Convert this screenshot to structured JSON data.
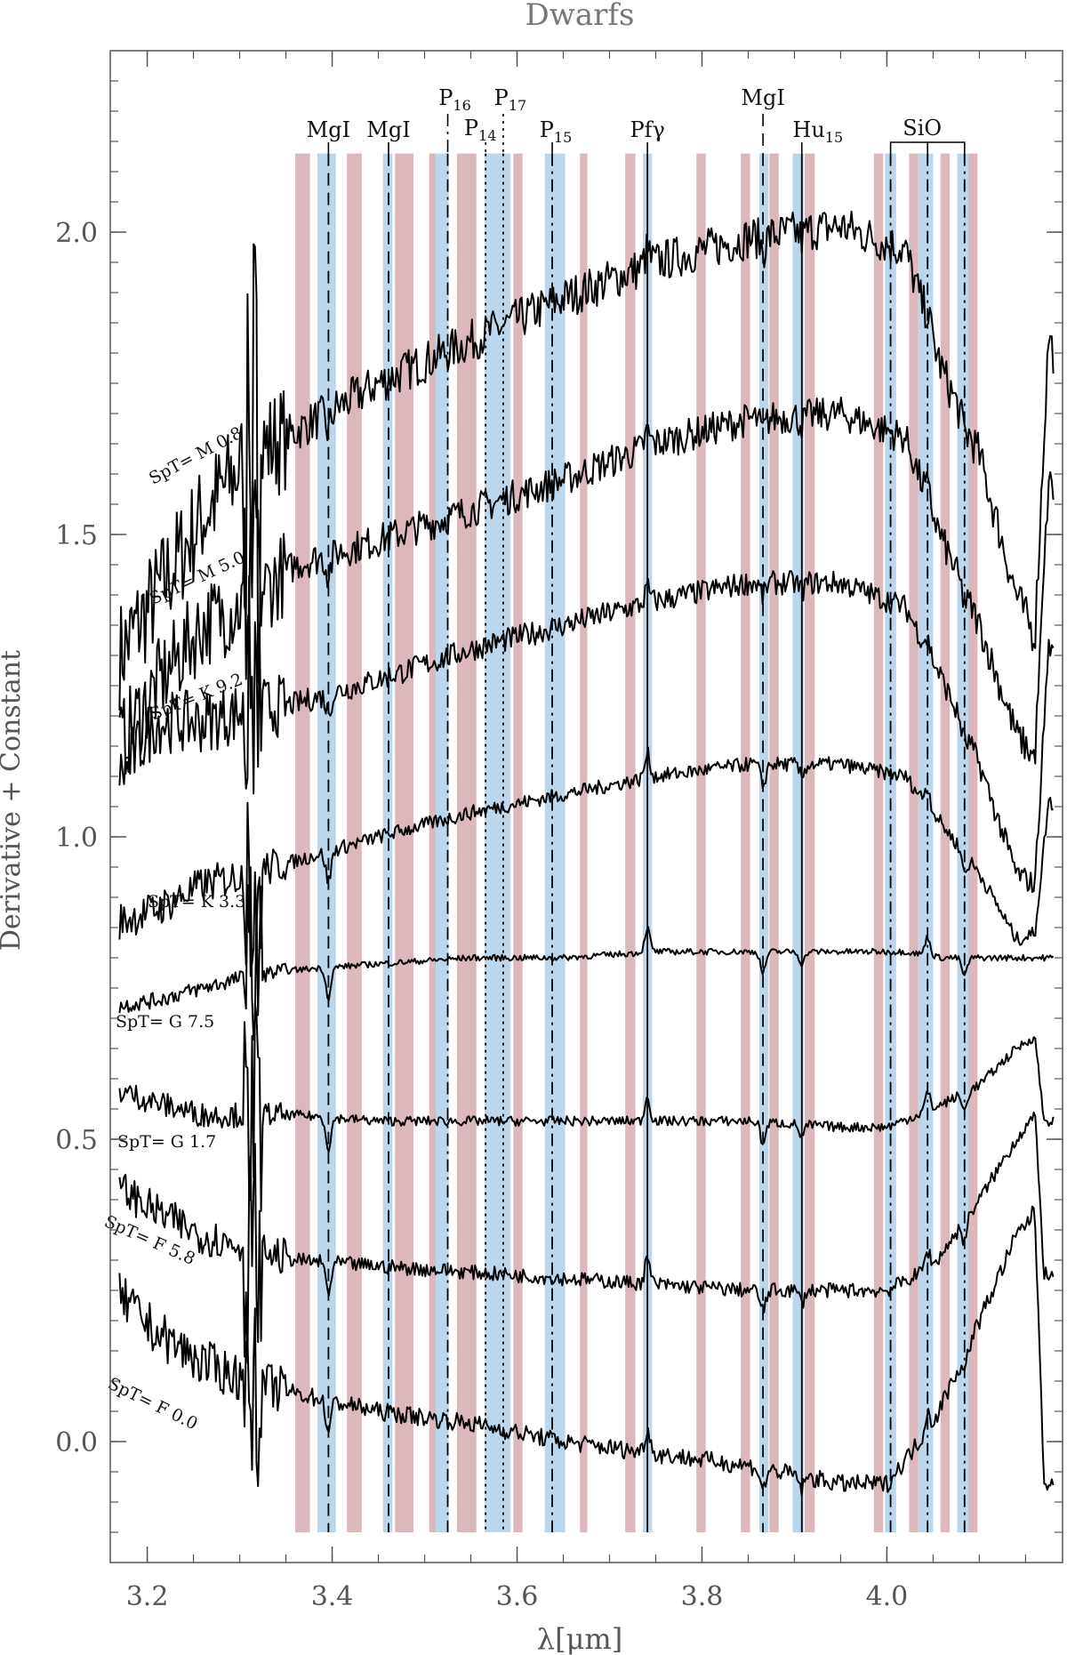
{
  "chart_data": {
    "type": "line",
    "title": "Dwarfs",
    "xlabel": "λ[μm]",
    "ylabel": "Derivative + Constant",
    "xlim": [
      3.16,
      4.19
    ],
    "ylim": [
      -0.2,
      2.3
    ],
    "x_ticks": [
      3.2,
      3.4,
      3.6,
      3.8,
      4.0
    ],
    "x_tick_labels": [
      "3.2",
      "3.4",
      "3.6",
      "3.8",
      "4.0"
    ],
    "y_ticks": [
      0.0,
      0.5,
      1.0,
      1.5,
      2.0
    ],
    "y_tick_labels": [
      "0.0",
      "0.5",
      "1.0",
      "1.5",
      "2.0"
    ],
    "grid": false,
    "red_bands": [
      [
        3.36,
        3.376
      ],
      [
        3.416,
        3.432
      ],
      [
        3.468,
        3.488
      ],
      [
        3.505,
        3.523
      ],
      [
        3.535,
        3.556
      ],
      [
        3.596,
        3.606
      ],
      [
        3.668,
        3.676
      ],
      [
        3.717,
        3.728
      ],
      [
        3.794,
        3.804
      ],
      [
        3.842,
        3.852
      ],
      [
        3.873,
        3.883
      ],
      [
        3.911,
        3.922
      ],
      [
        3.986,
        3.996
      ],
      [
        4.024,
        4.034
      ],
      [
        4.058,
        4.068
      ],
      [
        4.088,
        4.098
      ]
    ],
    "blue_bands": [
      [
        3.384,
        3.404
      ],
      [
        3.455,
        3.465
      ],
      [
        3.512,
        3.526
      ],
      [
        3.565,
        3.593
      ],
      [
        3.63,
        3.652
      ],
      [
        3.736,
        3.746
      ],
      [
        3.862,
        3.872
      ],
      [
        3.898,
        3.91
      ],
      [
        3.998,
        4.01
      ],
      [
        4.034,
        4.05
      ],
      [
        4.076,
        4.088
      ]
    ],
    "line_markers": [
      {
        "label": "MgI",
        "x": 3.396,
        "style": "dashed"
      },
      {
        "label": "MgI",
        "x": 3.461,
        "style": "dashed"
      },
      {
        "label": "P16",
        "x": 3.525,
        "style": "dashdot",
        "base": "P",
        "sub": "16"
      },
      {
        "label": "P14",
        "x": 3.566,
        "style": "dotted",
        "base": "P",
        "sub": "14"
      },
      {
        "label": "P17",
        "x": 3.585,
        "style": "dotted",
        "base": "P",
        "sub": "17"
      },
      {
        "label": "P15",
        "x": 3.638,
        "style": "dashdot",
        "base": "P",
        "sub": "15"
      },
      {
        "label": "Pfγ",
        "x": 3.741,
        "style": "solid"
      },
      {
        "label": "MgI",
        "x": 3.866,
        "style": "dashed"
      },
      {
        "label": "Hu15",
        "x": 3.908,
        "style": "solid",
        "base": "Hu",
        "sub": "15"
      },
      {
        "label": "SiO",
        "x": [
          4.004,
          4.044,
          4.084
        ],
        "style": "dashdot"
      }
    ],
    "series": [
      {
        "name": "SpT= M 0.8",
        "offset": 1.75,
        "shape": [
          [
            3.17,
            -0.45
          ],
          [
            3.21,
            -0.35
          ],
          [
            3.26,
            -0.22
          ],
          [
            3.31,
            -0.12
          ],
          [
            3.36,
            -0.08
          ],
          [
            3.45,
            0.0
          ],
          [
            3.55,
            0.07
          ],
          [
            3.65,
            0.14
          ],
          [
            3.75,
            0.2
          ],
          [
            3.85,
            0.24
          ],
          [
            3.95,
            0.26
          ],
          [
            4.02,
            0.22
          ],
          [
            4.06,
            0.02
          ],
          [
            4.1,
            -0.12
          ],
          [
            4.14,
            -0.35
          ],
          [
            4.16,
            -0.42
          ],
          [
            4.175,
            0.08
          ],
          [
            4.18,
            0.05
          ]
        ],
        "noise": 0.035
      },
      {
        "name": "SpT= M 5.0",
        "offset": 1.47,
        "shape": [
          [
            3.17,
            -0.32
          ],
          [
            3.21,
            -0.22
          ],
          [
            3.26,
            -0.12
          ],
          [
            3.31,
            -0.08
          ],
          [
            3.36,
            -0.02
          ],
          [
            3.45,
            0.02
          ],
          [
            3.55,
            0.07
          ],
          [
            3.65,
            0.12
          ],
          [
            3.75,
            0.18
          ],
          [
            3.85,
            0.22
          ],
          [
            3.95,
            0.23
          ],
          [
            4.02,
            0.19
          ],
          [
            4.06,
            0.02
          ],
          [
            4.1,
            -0.12
          ],
          [
            4.14,
            -0.3
          ],
          [
            4.16,
            -0.34
          ],
          [
            4.175,
            0.12
          ],
          [
            4.18,
            0.1
          ]
        ],
        "noise": 0.028
      },
      {
        "name": "SpT= K 9.2",
        "offset": 1.24,
        "shape": [
          [
            3.17,
            -0.14
          ],
          [
            3.21,
            -0.05
          ],
          [
            3.26,
            -0.05
          ],
          [
            3.31,
            -0.03
          ],
          [
            3.36,
            -0.02
          ],
          [
            3.45,
            0.02
          ],
          [
            3.55,
            0.07
          ],
          [
            3.65,
            0.11
          ],
          [
            3.75,
            0.15
          ],
          [
            3.85,
            0.18
          ],
          [
            3.95,
            0.18
          ],
          [
            4.02,
            0.14
          ],
          [
            4.06,
            0.02
          ],
          [
            4.1,
            -0.12
          ],
          [
            4.14,
            -0.3
          ],
          [
            4.16,
            -0.32
          ],
          [
            4.175,
            0.08
          ],
          [
            4.18,
            0.06
          ]
        ],
        "noise": 0.02
      },
      {
        "name": "SpT= K 3.3",
        "offset": 0.98,
        "shape": [
          [
            3.17,
            -0.12
          ],
          [
            3.21,
            -0.1
          ],
          [
            3.26,
            -0.06
          ],
          [
            3.31,
            -0.04
          ],
          [
            3.36,
            -0.02
          ],
          [
            3.45,
            0.02
          ],
          [
            3.55,
            0.06
          ],
          [
            3.65,
            0.09
          ],
          [
            3.75,
            0.12
          ],
          [
            3.85,
            0.14
          ],
          [
            3.95,
            0.14
          ],
          [
            4.02,
            0.12
          ],
          [
            4.06,
            0.04
          ],
          [
            4.1,
            -0.04
          ],
          [
            4.14,
            -0.15
          ],
          [
            4.16,
            -0.14
          ],
          [
            4.175,
            0.08
          ],
          [
            4.18,
            0.07
          ]
        ],
        "noise": 0.012
      },
      {
        "name": "SpT= G 7.5",
        "offset": 0.78,
        "shape": [
          [
            3.17,
            -0.06
          ],
          [
            3.21,
            -0.05
          ],
          [
            3.26,
            -0.03
          ],
          [
            3.31,
            -0.01
          ],
          [
            3.36,
            0.0
          ],
          [
            3.45,
            0.01
          ],
          [
            3.55,
            0.02
          ],
          [
            3.65,
            0.02
          ],
          [
            3.75,
            0.03
          ],
          [
            3.85,
            0.03
          ],
          [
            3.95,
            0.03
          ],
          [
            4.02,
            0.03
          ],
          [
            4.06,
            0.02
          ],
          [
            4.1,
            0.02
          ],
          [
            4.14,
            0.02
          ],
          [
            4.18,
            0.02
          ]
        ],
        "noise": 0.005
      },
      {
        "name": "SpT= G 1.7",
        "offset": 0.53,
        "shape": [
          [
            3.17,
            0.05
          ],
          [
            3.21,
            0.03
          ],
          [
            3.26,
            0.01
          ],
          [
            3.31,
            0.01
          ],
          [
            3.36,
            0.01
          ],
          [
            3.45,
            0.0
          ],
          [
            3.55,
            0.0
          ],
          [
            3.65,
            0.0
          ],
          [
            3.75,
            0.0
          ],
          [
            3.85,
            0.0
          ],
          [
            3.95,
            -0.01
          ],
          [
            4.0,
            -0.01
          ],
          [
            4.05,
            0.02
          ],
          [
            4.1,
            0.06
          ],
          [
            4.14,
            0.12
          ],
          [
            4.16,
            0.14
          ],
          [
            4.17,
            0.0
          ],
          [
            4.18,
            0.0
          ]
        ],
        "noise": 0.008
      },
      {
        "name": "SpT= F 5.8",
        "offset": 0.3,
        "shape": [
          [
            3.17,
            0.12
          ],
          [
            3.21,
            0.08
          ],
          [
            3.26,
            0.04
          ],
          [
            3.31,
            0.02
          ],
          [
            3.36,
            0.0
          ],
          [
            3.45,
            -0.01
          ],
          [
            3.55,
            -0.02
          ],
          [
            3.65,
            -0.03
          ],
          [
            3.75,
            -0.04
          ],
          [
            3.85,
            -0.05
          ],
          [
            3.95,
            -0.05
          ],
          [
            4.0,
            -0.05
          ],
          [
            4.05,
            -0.01
          ],
          [
            4.1,
            0.1
          ],
          [
            4.14,
            0.2
          ],
          [
            4.16,
            0.24
          ],
          [
            4.17,
            -0.02
          ],
          [
            4.18,
            -0.03
          ]
        ],
        "noise": 0.012
      },
      {
        "name": "SpT= F 0.0",
        "offset": 0.08,
        "shape": [
          [
            3.17,
            0.16
          ],
          [
            3.21,
            0.1
          ],
          [
            3.26,
            0.05
          ],
          [
            3.31,
            0.02
          ],
          [
            3.36,
            0.0
          ],
          [
            3.45,
            -0.03
          ],
          [
            3.55,
            -0.05
          ],
          [
            3.65,
            -0.08
          ],
          [
            3.75,
            -0.1
          ],
          [
            3.85,
            -0.12
          ],
          [
            3.95,
            -0.15
          ],
          [
            4.0,
            -0.15
          ],
          [
            4.05,
            -0.05
          ],
          [
            4.1,
            0.12
          ],
          [
            4.14,
            0.26
          ],
          [
            4.16,
            0.3
          ],
          [
            4.17,
            -0.14
          ],
          [
            4.18,
            -0.16
          ]
        ],
        "noise": 0.015
      }
    ]
  }
}
